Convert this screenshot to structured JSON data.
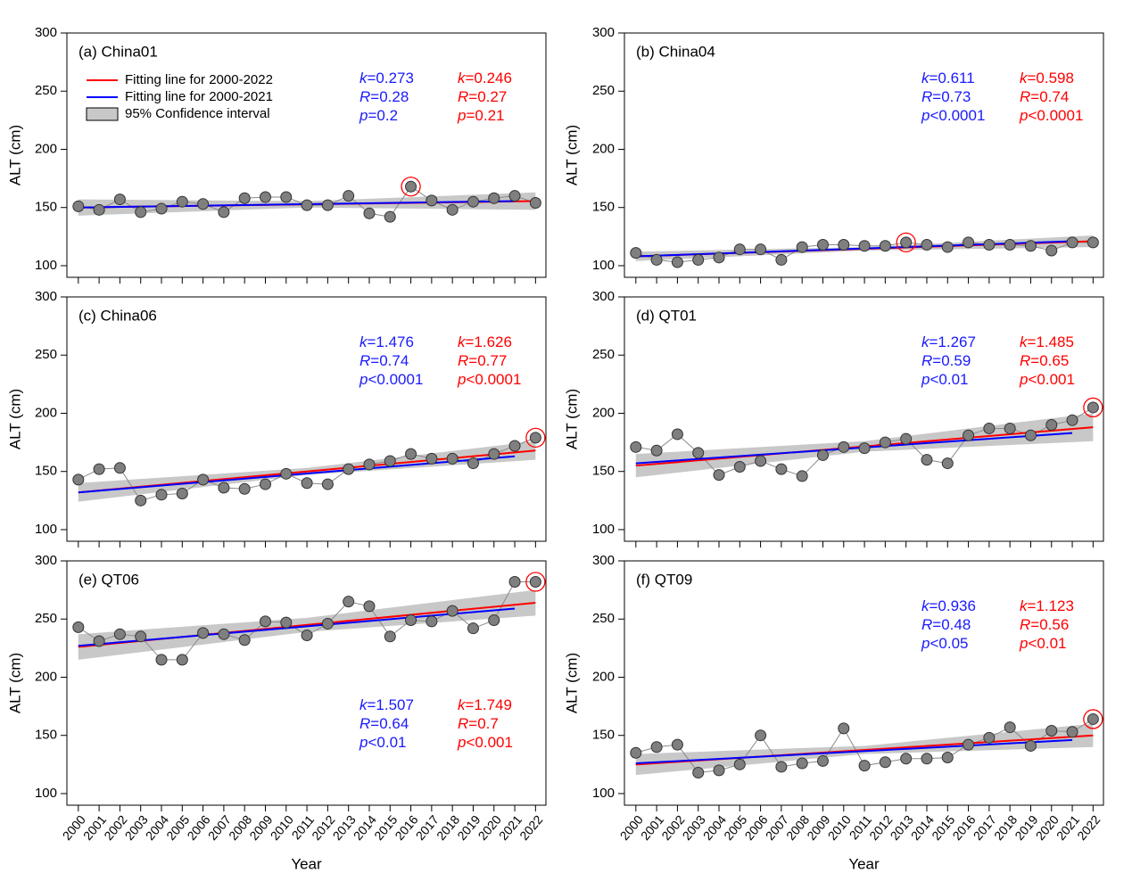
{
  "chart_data": [
    {
      "type": "line",
      "title": "(a) China01",
      "ylabel": "ALT (cm)",
      "x": [
        2000,
        2001,
        2002,
        2003,
        2004,
        2005,
        2006,
        2007,
        2008,
        2009,
        2010,
        2011,
        2012,
        2013,
        2014,
        2015,
        2016,
        2017,
        2018,
        2019,
        2020,
        2021,
        2022
      ],
      "values": [
        151,
        148,
        157,
        146,
        149,
        155,
        153,
        146,
        158,
        159,
        159,
        152,
        152,
        160,
        145,
        142,
        168,
        156,
        148,
        155,
        158,
        160,
        154
      ],
      "color": "#7f7f7f",
      "highlight_index": 16,
      "highlight_color": "#ff0000",
      "xlim": [
        1999.45,
        2022.5
      ],
      "xticks": [
        2000,
        2001,
        2002,
        2003,
        2004,
        2005,
        2006,
        2007,
        2008,
        2009,
        2010,
        2011,
        2012,
        2013,
        2014,
        2015,
        2016,
        2017,
        2018,
        2019,
        2020,
        2021,
        2022
      ],
      "xtick_labels": false,
      "ylim": [
        90,
        300
      ],
      "yticks": [
        100,
        150,
        200,
        250,
        300
      ],
      "ci": {
        "name": "95% Confidence interval",
        "color": "#c8c8c8",
        "x": [
          2000,
          2011,
          2022
        ],
        "lower": [
          143,
          150,
          148
        ],
        "upper": [
          157,
          155.5,
          163
        ]
      },
      "fits": [
        {
          "name": "Fitting line for 2000-2022",
          "color": "#ff0000",
          "x": [
            2000,
            2022
          ],
          "values": [
            150,
            155.5
          ]
        },
        {
          "name": "Fitting line for 2000-2021",
          "color": "#0000ff",
          "x": [
            2000,
            2021
          ],
          "values": [
            150,
            155.5
          ]
        }
      ],
      "legend": true,
      "stats_position": "upper",
      "stats": [
        {
          "color": "#1a1aff",
          "lines": [
            "k=0.273",
            "R=0.28",
            "p=0.2"
          ]
        },
        {
          "color": "#ff0000",
          "lines": [
            "k=0.246",
            "R=0.27",
            "p=0.21"
          ]
        }
      ]
    },
    {
      "type": "line",
      "title": "(b) China04",
      "ylabel": "ALT (cm)",
      "x": [
        2000,
        2001,
        2002,
        2003,
        2004,
        2005,
        2006,
        2007,
        2008,
        2009,
        2010,
        2011,
        2012,
        2013,
        2014,
        2015,
        2016,
        2017,
        2018,
        2019,
        2020,
        2021,
        2022
      ],
      "values": [
        111,
        105,
        103,
        105,
        107,
        114,
        114,
        105,
        116,
        118,
        118,
        117,
        117,
        120,
        118,
        116,
        120,
        118,
        118,
        117,
        113,
        120,
        120
      ],
      "color": "#7f7f7f",
      "highlight_index": 13,
      "highlight_color": "#ff0000",
      "xlim": [
        1999.45,
        2022.5
      ],
      "xticks": [
        2000,
        2001,
        2002,
        2003,
        2004,
        2005,
        2006,
        2007,
        2008,
        2009,
        2010,
        2011,
        2012,
        2013,
        2014,
        2015,
        2016,
        2017,
        2018,
        2019,
        2020,
        2021,
        2022
      ],
      "xtick_labels": false,
      "ylim": [
        90,
        300
      ],
      "yticks": [
        100,
        150,
        200,
        250,
        300
      ],
      "ci": {
        "color": "#c8c8c8",
        "x": [
          2000,
          2011,
          2022
        ],
        "lower": [
          104,
          113,
          116
        ],
        "upper": [
          112,
          116,
          126
        ]
      },
      "fits": [
        {
          "color": "#ff0000",
          "x": [
            2000,
            2022
          ],
          "values": [
            108,
            121
          ]
        },
        {
          "color": "#0000ff",
          "x": [
            2000,
            2021
          ],
          "values": [
            108,
            121
          ]
        }
      ],
      "legend": false,
      "stats_position": "upper",
      "stats": [
        {
          "color": "#1a1aff",
          "lines": [
            "k=0.611",
            "R=0.73",
            "p<0.0001"
          ]
        },
        {
          "color": "#ff0000",
          "lines": [
            "k=0.598",
            "R=0.74",
            "p<0.0001"
          ]
        }
      ]
    },
    {
      "type": "line",
      "title": "(c) China06",
      "ylabel": "ALT (cm)",
      "x": [
        2000,
        2001,
        2002,
        2003,
        2004,
        2005,
        2006,
        2007,
        2008,
        2009,
        2010,
        2011,
        2012,
        2013,
        2014,
        2015,
        2016,
        2017,
        2018,
        2019,
        2020,
        2021,
        2022
      ],
      "values": [
        143,
        152,
        153,
        125,
        130,
        131,
        143,
        136,
        135,
        139,
        148,
        140,
        139,
        152,
        156,
        159,
        165,
        161,
        161,
        157,
        165,
        172,
        179
      ],
      "color": "#7f7f7f",
      "highlight_index": 22,
      "highlight_color": "#ff0000",
      "xlim": [
        1999.45,
        2022.5
      ],
      "xticks": [
        2000,
        2001,
        2002,
        2003,
        2004,
        2005,
        2006,
        2007,
        2008,
        2009,
        2010,
        2011,
        2012,
        2013,
        2014,
        2015,
        2016,
        2017,
        2018,
        2019,
        2020,
        2021,
        2022
      ],
      "xtick_labels": false,
      "ylim": [
        90,
        300
      ],
      "yticks": [
        100,
        150,
        200,
        250,
        300
      ],
      "ci": {
        "color": "#c8c8c8",
        "x": [
          2000,
          2011,
          2022
        ],
        "lower": [
          124,
          147,
          160
        ],
        "upper": [
          140,
          153,
          176
        ]
      },
      "fits": [
        {
          "color": "#ff0000",
          "x": [
            2000,
            2022
          ],
          "values": [
            132,
            168
          ]
        },
        {
          "color": "#0000ff",
          "x": [
            2000,
            2021
          ],
          "values": [
            132,
            163
          ]
        }
      ],
      "legend": false,
      "stats_position": "upper",
      "stats": [
        {
          "color": "#1a1aff",
          "lines": [
            "k=1.476",
            "R=0.74",
            "p<0.0001"
          ]
        },
        {
          "color": "#ff0000",
          "lines": [
            "k=1.626",
            "R=0.77",
            "p<0.0001"
          ]
        }
      ]
    },
    {
      "type": "line",
      "title": "(d) QT01",
      "ylabel": "ALT (cm)",
      "x": [
        2000,
        2001,
        2002,
        2003,
        2004,
        2005,
        2006,
        2007,
        2008,
        2009,
        2010,
        2011,
        2012,
        2013,
        2014,
        2015,
        2016,
        2017,
        2018,
        2019,
        2020,
        2021,
        2022
      ],
      "values": [
        171,
        168,
        182,
        166,
        147,
        154,
        159,
        152,
        146,
        164,
        171,
        170,
        175,
        178,
        160,
        157,
        181,
        187,
        187,
        181,
        190,
        194,
        205
      ],
      "color": "#7f7f7f",
      "highlight_index": 22,
      "highlight_color": "#ff0000",
      "xlim": [
        1999.45,
        2022.5
      ],
      "xticks": [
        2000,
        2001,
        2002,
        2003,
        2004,
        2005,
        2006,
        2007,
        2008,
        2009,
        2010,
        2011,
        2012,
        2013,
        2014,
        2015,
        2016,
        2017,
        2018,
        2019,
        2020,
        2021,
        2022
      ],
      "xtick_labels": false,
      "ylim": [
        90,
        300
      ],
      "yticks": [
        100,
        150,
        200,
        250,
        300
      ],
      "ci": {
        "color": "#c8c8c8",
        "x": [
          2000,
          2011,
          2022
        ],
        "lower": [
          145,
          167,
          176
        ],
        "upper": [
          165,
          176,
          200
        ]
      },
      "fits": [
        {
          "color": "#ff0000",
          "x": [
            2000,
            2022
          ],
          "values": [
            155,
            188
          ]
        },
        {
          "color": "#0000ff",
          "x": [
            2000,
            2021
          ],
          "values": [
            157,
            183
          ]
        }
      ],
      "legend": false,
      "stats_position": "upper",
      "stats": [
        {
          "color": "#1a1aff",
          "lines": [
            "k=1.267",
            "R=0.59",
            "p<0.01"
          ]
        },
        {
          "color": "#ff0000",
          "lines": [
            "k=1.485",
            "R=0.65",
            "p<0.001"
          ]
        }
      ]
    },
    {
      "type": "line",
      "title": "(e) QT06",
      "ylabel": "ALT (cm)",
      "xlabel": "Year",
      "x": [
        2000,
        2001,
        2002,
        2003,
        2004,
        2005,
        2006,
        2007,
        2008,
        2009,
        2010,
        2011,
        2012,
        2013,
        2014,
        2015,
        2016,
        2017,
        2018,
        2019,
        2020,
        2021,
        2022
      ],
      "values": [
        243,
        231,
        237,
        235,
        215,
        215,
        238,
        237,
        232,
        248,
        247,
        236,
        246,
        265,
        261,
        235,
        249,
        248,
        257,
        242,
        249,
        282,
        282
      ],
      "color": "#7f7f7f",
      "highlight_index": 22,
      "highlight_color": "#ff0000",
      "xlim": [
        1999.45,
        2022.5
      ],
      "xticks": [
        2000,
        2001,
        2002,
        2003,
        2004,
        2005,
        2006,
        2007,
        2008,
        2009,
        2010,
        2011,
        2012,
        2013,
        2014,
        2015,
        2016,
        2017,
        2018,
        2019,
        2020,
        2021,
        2022
      ],
      "xtick_labels": true,
      "ylim": [
        90,
        300
      ],
      "yticks": [
        100,
        150,
        200,
        250,
        300
      ],
      "ci": {
        "color": "#c8c8c8",
        "x": [
          2000,
          2011,
          2022
        ],
        "lower": [
          215,
          239,
          253
        ],
        "upper": [
          237,
          251,
          275
        ]
      },
      "fits": [
        {
          "color": "#ff0000",
          "x": [
            2000,
            2022
          ],
          "values": [
            226,
            264
          ]
        },
        {
          "color": "#0000ff",
          "x": [
            2000,
            2021
          ],
          "values": [
            227,
            259
          ]
        }
      ],
      "legend": false,
      "stats_position": "lower",
      "stats": [
        {
          "color": "#1a1aff",
          "lines": [
            "k=1.507",
            "R=0.64",
            "p<0.01"
          ]
        },
        {
          "color": "#ff0000",
          "lines": [
            "k=1.749",
            "R=0.7",
            "p<0.001"
          ]
        }
      ]
    },
    {
      "type": "line",
      "title": "(f) QT09",
      "ylabel": "ALT (cm)",
      "xlabel": "Year",
      "x": [
        2000,
        2001,
        2002,
        2003,
        2004,
        2005,
        2006,
        2007,
        2008,
        2009,
        2010,
        2011,
        2012,
        2013,
        2014,
        2015,
        2016,
        2017,
        2018,
        2019,
        2020,
        2021,
        2022
      ],
      "values": [
        135,
        140,
        142,
        118,
        120,
        125,
        150,
        123,
        126,
        128,
        156,
        124,
        127,
        130,
        130,
        131,
        142,
        148,
        157,
        141,
        154,
        153,
        164
      ],
      "color": "#7f7f7f",
      "highlight_index": 22,
      "highlight_color": "#ff0000",
      "xlim": [
        1999.45,
        2022.5
      ],
      "xticks": [
        2000,
        2001,
        2002,
        2003,
        2004,
        2005,
        2006,
        2007,
        2008,
        2009,
        2010,
        2011,
        2012,
        2013,
        2014,
        2015,
        2016,
        2017,
        2018,
        2019,
        2020,
        2021,
        2022
      ],
      "xtick_labels": true,
      "ylim": [
        90,
        300
      ],
      "yticks": [
        100,
        150,
        200,
        250,
        300
      ],
      "ci": {
        "color": "#c8c8c8",
        "x": [
          2000,
          2011,
          2022
        ],
        "lower": [
          116,
          134,
          140
        ],
        "upper": [
          134,
          141,
          160
        ]
      },
      "fits": [
        {
          "color": "#ff0000",
          "x": [
            2000,
            2022
          ],
          "values": [
            125,
            150
          ]
        },
        {
          "color": "#0000ff",
          "x": [
            2000,
            2021
          ],
          "values": [
            126,
            146
          ]
        }
      ],
      "legend": false,
      "stats_position": "upper",
      "stats": [
        {
          "color": "#1a1aff",
          "lines": [
            "k=0.936",
            "R=0.48",
            "p<0.05"
          ]
        },
        {
          "color": "#ff0000",
          "lines": [
            "k=1.123",
            "R=0.56",
            "p<0.01"
          ]
        }
      ]
    }
  ]
}
